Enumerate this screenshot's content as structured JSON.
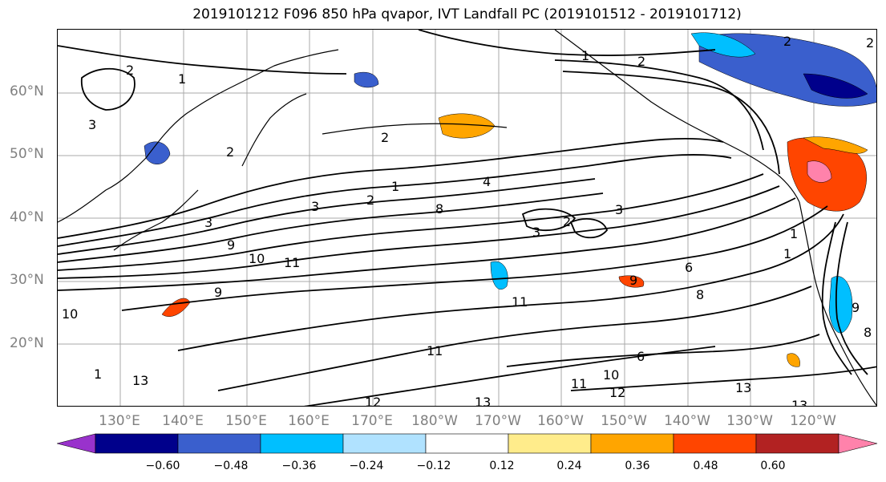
{
  "title": "2019101212 F096 850 hPa qvapor, IVT Landfall PC (2019101512 - 2019101712)",
  "map": {
    "lat_labels": [
      "60°N",
      "50°N",
      "40°N",
      "30°N",
      "20°N"
    ],
    "lon_labels": [
      "130°E",
      "140°E",
      "150°E",
      "160°E",
      "170°E",
      "180°W",
      "170°W",
      "160°W",
      "150°W",
      "140°W",
      "130°W",
      "120°W"
    ],
    "contour_labels": [
      "1",
      "2",
      "2",
      "3",
      "2",
      "1",
      "2",
      "3",
      "4",
      "8",
      "9",
      "10",
      "11",
      "9",
      "13",
      "12",
      "11",
      "11",
      "13",
      "2",
      "3",
      "3",
      "1",
      "2",
      "1",
      "9",
      "8",
      "6",
      "6",
      "10",
      "11",
      "12",
      "13",
      "13",
      "8",
      "9",
      "10",
      "1",
      "2",
      "1",
      "2",
      "3"
    ]
  },
  "colorbar": {
    "colors": [
      "#9932cc",
      "#00008b",
      "#3a5fcd",
      "#00bfff",
      "#b0e2ff",
      "#ffffff",
      "#ffec8b",
      "#ffa500",
      "#ff4500",
      "#b22222",
      "#ff82ab"
    ],
    "tick_labels": [
      "−0.60",
      "−0.48",
      "−0.36",
      "−0.24",
      "−0.12",
      "0.12",
      "0.24",
      "0.36",
      "0.48",
      "0.60"
    ]
  }
}
